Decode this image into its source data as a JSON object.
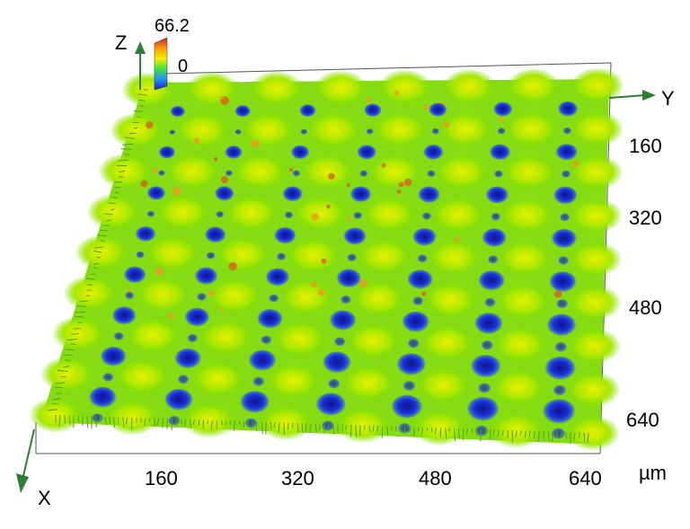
{
  "chart_data": {
    "type": "surface3d",
    "axes": {
      "x": {
        "label": "X",
        "ticks": [
          "160",
          "320",
          "480",
          "640"
        ]
      },
      "y": {
        "label": "Y",
        "ticks": [
          "160",
          "320",
          "480",
          "640"
        ]
      },
      "z": {
        "label": "Z",
        "colorbar_max": "66.2",
        "colorbar_min": "0"
      }
    },
    "unit": "µm",
    "surface": {
      "pattern": "periodic array of wells (low, blue) in a raised textured surface (green-yellow, orange peaks)",
      "grid_rows": 8,
      "grid_cols": 7
    },
    "colors": {
      "axis": "#2e7d32",
      "low": "#1a2fd6",
      "mid": "#7be000",
      "high": "#e0e000",
      "peak": "#d2691e"
    }
  }
}
